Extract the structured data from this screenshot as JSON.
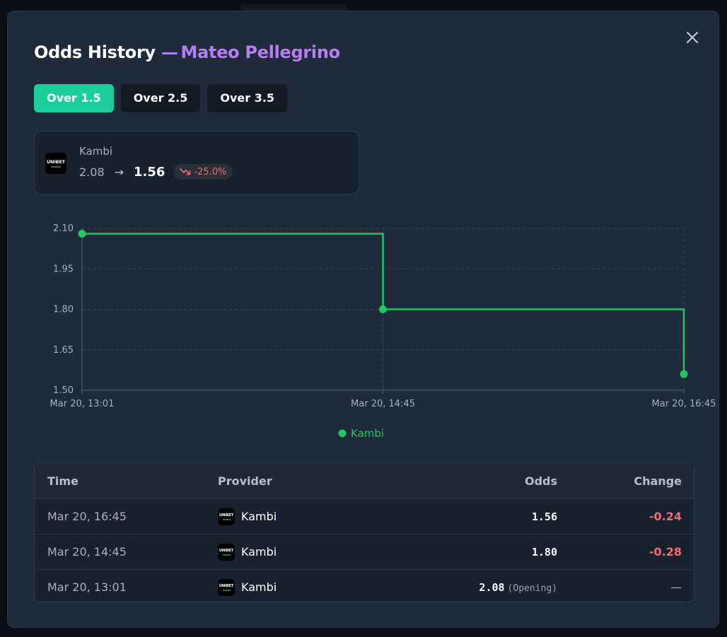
{
  "modal": {
    "title": "Odds History",
    "title_dash": "—",
    "player": "Mateo Pellegrino"
  },
  "tabs": [
    {
      "label": "Over 1.5",
      "active": true
    },
    {
      "label": "Over 2.5",
      "active": false
    },
    {
      "label": "Over 3.5",
      "active": false
    }
  ],
  "provider_card": {
    "logo_text": "UNIBET",
    "name": "Kambi",
    "opening_odds": "2.08",
    "arrow": "→",
    "current_odds": "1.56",
    "change_pct": "-25.0%",
    "trend_icon": "trending-down-icon"
  },
  "colors": {
    "accent": "#1ccf9a",
    "player": "#b57ef5",
    "series": "#22c55e",
    "negative": "#f26d6d"
  },
  "chart_data": {
    "type": "line",
    "step": true,
    "title": "",
    "xlabel": "",
    "ylabel": "",
    "x": [
      "Mar 20, 13:01",
      "Mar 20, 14:45",
      "Mar 20, 16:45"
    ],
    "x_ticks": [
      "Mar 20, 13:01",
      "Mar 20, 14:45",
      "Mar 20, 16:45"
    ],
    "y_ticks": [
      "2.10",
      "1.95",
      "1.80",
      "1.65",
      "1.50"
    ],
    "ylim": [
      1.5,
      2.1
    ],
    "grid": true,
    "legend_position": "bottom-center",
    "series": [
      {
        "name": "Kambi",
        "color": "#22c55e",
        "values": [
          2.08,
          1.8,
          1.56
        ]
      }
    ]
  },
  "table": {
    "headers": {
      "time": "Time",
      "provider": "Provider",
      "odds": "Odds",
      "change": "Change"
    },
    "rows": [
      {
        "time": "Mar 20, 16:45",
        "provider": "Kambi",
        "odds": "1.56",
        "tag": "",
        "change": "-0.24"
      },
      {
        "time": "Mar 20, 14:45",
        "provider": "Kambi",
        "odds": "1.80",
        "tag": "",
        "change": "-0.28"
      },
      {
        "time": "Mar 20, 13:01",
        "provider": "Kambi",
        "odds": "2.08",
        "tag": "(Opening)",
        "change": "—"
      }
    ]
  }
}
